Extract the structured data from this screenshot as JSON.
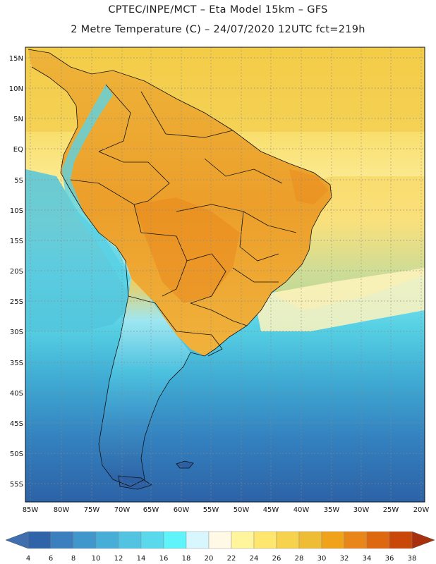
{
  "title": {
    "line1": "CPTEC/INPE/MCT –  Eta Model 15km – GFS",
    "line2": "2 Metre Temperature (C) – 24/07/2020 12UTC fct=219h"
  },
  "map": {
    "lat_labels": [
      "15N",
      "10N",
      "5N",
      "EQ",
      "5S",
      "10S",
      "15S",
      "20S",
      "25S",
      "30S",
      "35S",
      "40S",
      "45S",
      "50S",
      "55S"
    ],
    "lon_labels": [
      "85W",
      "80W",
      "75W",
      "70W",
      "65W",
      "60W",
      "55W",
      "50W",
      "45W",
      "40W",
      "35W",
      "30W",
      "25W",
      "20W"
    ]
  },
  "colorbar": {
    "labels": [
      "4",
      "6",
      "8",
      "10",
      "12",
      "14",
      "16",
      "18",
      "20",
      "22",
      "24",
      "26",
      "28",
      "30",
      "32",
      "34",
      "36",
      "38"
    ],
    "low_color": "#3f6fae",
    "high_color": "#a8300c",
    "colors": [
      "#2f64a8",
      "#3b7fbe",
      "#3f97cc",
      "#47aed8",
      "#52c4e2",
      "#5ad9ec",
      "#5ff4f9",
      "#d7f6fd",
      "#fff9e6",
      "#fff59c",
      "#ffe66e",
      "#f6d24e",
      "#efbc36",
      "#f0a31a",
      "#e8861a",
      "#de6810",
      "#c94708"
    ]
  }
}
